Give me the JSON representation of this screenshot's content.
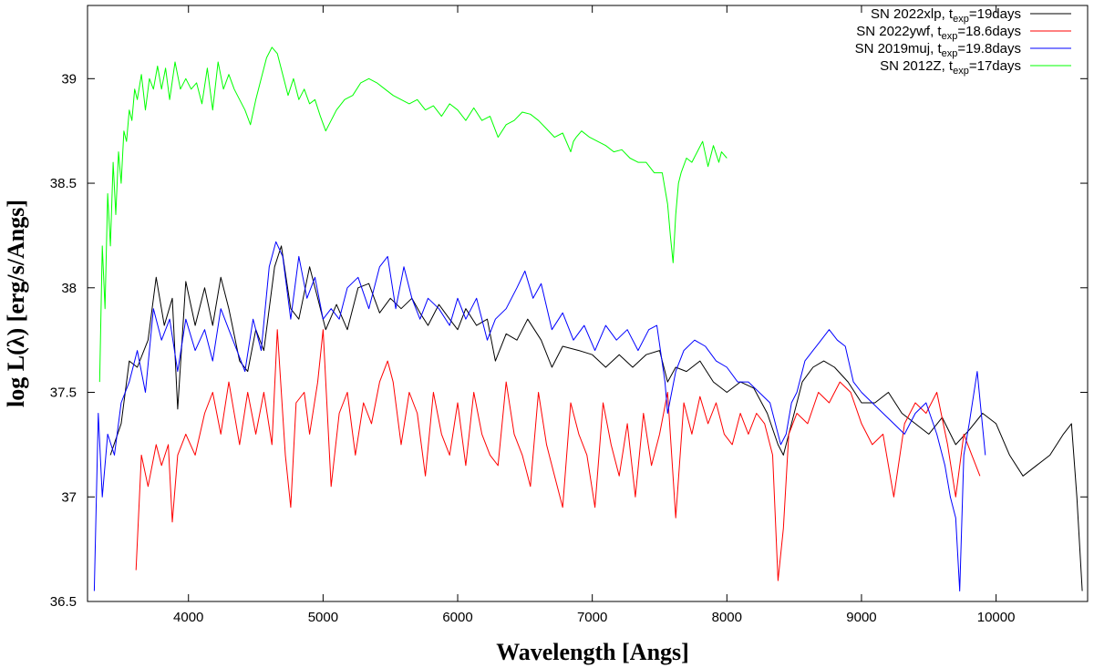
{
  "chart_data": {
    "type": "line",
    "xlabel": "Wavelength [Angs]",
    "ylabel": "log L(λ) [erg/s/Angs]",
    "xlim": [
      3250,
      10680
    ],
    "ylim": [
      36.5,
      39.35
    ],
    "x_ticks": [
      4000,
      5000,
      6000,
      7000,
      8000,
      9000,
      10000
    ],
    "x_tick_labels": [
      "4000",
      "5000",
      "6000",
      "7000",
      "8000",
      "9000",
      "10000"
    ],
    "y_ticks": [
      36.5,
      37,
      37.5,
      38,
      38.5,
      39
    ],
    "y_tick_labels": [
      "36.5",
      "37",
      "37.5",
      "38",
      "38.5",
      "39"
    ],
    "grid": false,
    "legend_position": "top-right",
    "series": [
      {
        "name": "SN 2022xlp, t_exp=19days",
        "legend_main": "SN 2022xlp, t",
        "legend_sub": "exp",
        "legend_tail": "=19days",
        "color": "#000000",
        "x": [
          3420,
          3500,
          3560,
          3620,
          3700,
          3760,
          3820,
          3880,
          3920,
          3980,
          4050,
          4120,
          4180,
          4240,
          4300,
          4380,
          4440,
          4500,
          4560,
          4640,
          4690,
          4760,
          4820,
          4900,
          4960,
          5020,
          5100,
          5180,
          5260,
          5340,
          5420,
          5500,
          5580,
          5660,
          5720,
          5780,
          5860,
          5940,
          6000,
          6060,
          6140,
          6220,
          6280,
          6360,
          6440,
          6520,
          6620,
          6700,
          6780,
          6900,
          7000,
          7100,
          7200,
          7300,
          7400,
          7500,
          7560,
          7620,
          7700,
          7800,
          7900,
          8000,
          8100,
          8200,
          8300,
          8380,
          8420,
          8480,
          8560,
          8640,
          8720,
          8800,
          8900,
          9000,
          9100,
          9200,
          9300,
          9400,
          9500,
          9600,
          9700,
          9800,
          9900,
          10000,
          10100,
          10200,
          10300,
          10400,
          10500,
          10560,
          10600,
          10640
        ],
        "y": [
          37.2,
          37.35,
          37.65,
          37.62,
          37.75,
          38.05,
          37.82,
          37.95,
          37.42,
          38.03,
          37.82,
          38.0,
          37.82,
          38.05,
          37.9,
          37.65,
          37.6,
          37.8,
          37.7,
          38.1,
          38.2,
          37.9,
          37.85,
          38.1,
          37.95,
          37.8,
          37.92,
          37.8,
          38.0,
          38.02,
          37.88,
          37.95,
          37.9,
          37.95,
          37.88,
          37.82,
          37.92,
          37.85,
          37.8,
          37.9,
          37.82,
          37.85,
          37.65,
          37.78,
          37.75,
          37.85,
          37.75,
          37.62,
          37.72,
          37.7,
          37.68,
          37.62,
          37.68,
          37.62,
          37.68,
          37.7,
          37.55,
          37.62,
          37.6,
          37.65,
          37.55,
          37.5,
          37.55,
          37.52,
          37.4,
          37.25,
          37.2,
          37.35,
          37.55,
          37.62,
          37.65,
          37.62,
          37.55,
          37.45,
          37.45,
          37.5,
          37.4,
          37.35,
          37.3,
          37.38,
          37.25,
          37.32,
          37.4,
          37.35,
          37.2,
          37.1,
          37.15,
          37.2,
          37.3,
          37.35,
          37.0,
          36.55
        ]
      },
      {
        "name": "SN 2022ywf, t_exp=18.6days",
        "legend_main": "SN 2022ywf, t",
        "legend_sub": "exp",
        "legend_tail": "=18.6days",
        "color": "#ff0000",
        "x": [
          3610,
          3650,
          3700,
          3760,
          3800,
          3850,
          3880,
          3920,
          3980,
          4050,
          4120,
          4180,
          4240,
          4300,
          4380,
          4440,
          4500,
          4560,
          4620,
          4660,
          4720,
          4760,
          4800,
          4860,
          4900,
          4960,
          5000,
          5060,
          5120,
          5180,
          5240,
          5300,
          5360,
          5420,
          5480,
          5520,
          5580,
          5640,
          5700,
          5760,
          5820,
          5880,
          5940,
          6000,
          6060,
          6120,
          6180,
          6240,
          6300,
          6360,
          6420,
          6480,
          6540,
          6600,
          6660,
          6720,
          6780,
          6840,
          6900,
          6960,
          7020,
          7080,
          7140,
          7200,
          7260,
          7320,
          7380,
          7440,
          7500,
          7560,
          7620,
          7680,
          7740,
          7800,
          7860,
          7920,
          7980,
          8040,
          8100,
          8160,
          8220,
          8280,
          8340,
          8380,
          8420,
          8460,
          8520,
          8600,
          8680,
          8760,
          8840,
          8920,
          9000,
          9080,
          9160,
          9240,
          9320,
          9400,
          9480,
          9560,
          9640,
          9700,
          9760,
          9820,
          9880
        ],
        "y": [
          36.65,
          37.2,
          37.05,
          37.25,
          37.15,
          37.25,
          36.88,
          37.2,
          37.3,
          37.2,
          37.4,
          37.5,
          37.3,
          37.55,
          37.25,
          37.5,
          37.3,
          37.5,
          37.25,
          37.8,
          37.2,
          36.95,
          37.45,
          37.5,
          37.3,
          37.55,
          37.8,
          37.05,
          37.4,
          37.5,
          37.2,
          37.45,
          37.35,
          37.55,
          37.65,
          37.55,
          37.25,
          37.5,
          37.4,
          37.1,
          37.5,
          37.3,
          37.2,
          37.45,
          37.15,
          37.5,
          37.3,
          37.2,
          37.15,
          37.55,
          37.3,
          37.2,
          37.05,
          37.5,
          37.25,
          37.1,
          36.95,
          37.45,
          37.3,
          37.2,
          36.95,
          37.45,
          37.25,
          37.1,
          37.35,
          37.0,
          37.4,
          37.15,
          37.3,
          37.5,
          36.9,
          37.45,
          37.3,
          37.48,
          37.35,
          37.45,
          37.3,
          37.25,
          37.4,
          37.3,
          37.4,
          37.35,
          37.2,
          36.6,
          36.85,
          37.3,
          37.4,
          37.35,
          37.5,
          37.45,
          37.55,
          37.5,
          37.35,
          37.25,
          37.3,
          37.0,
          37.35,
          37.45,
          37.4,
          37.5,
          37.25,
          37.0,
          37.3,
          37.2,
          37.1
        ]
      },
      {
        "name": "SN 2019muj, t_exp=19.8days",
        "legend_main": "SN 2019muj, t",
        "legend_sub": "exp",
        "legend_tail": "=19.8days",
        "color": "#0000ff",
        "x": [
          3300,
          3330,
          3360,
          3400,
          3450,
          3500,
          3560,
          3620,
          3680,
          3740,
          3800,
          3860,
          3920,
          3980,
          4050,
          4120,
          4180,
          4240,
          4300,
          4360,
          4420,
          4480,
          4540,
          4600,
          4650,
          4700,
          4760,
          4820,
          4880,
          4940,
          5000,
          5060,
          5120,
          5180,
          5260,
          5340,
          5420,
          5480,
          5540,
          5600,
          5660,
          5720,
          5780,
          5860,
          5940,
          6000,
          6060,
          6140,
          6220,
          6280,
          6360,
          6440,
          6500,
          6560,
          6620,
          6700,
          6780,
          6860,
          6940,
          7020,
          7100,
          7180,
          7260,
          7340,
          7420,
          7480,
          7540,
          7560,
          7620,
          7680,
          7760,
          7840,
          7920,
          8000,
          8080,
          8160,
          8240,
          8320,
          8360,
          8400,
          8440,
          8480,
          8520,
          8580,
          8640,
          8700,
          8760,
          8820,
          8880,
          8940,
          9000,
          9080,
          9160,
          9240,
          9320,
          9400,
          9480,
          9560,
          9620,
          9660,
          9700,
          9730,
          9760,
          9800,
          9860,
          9920
        ],
        "y": [
          36.55,
          37.4,
          37.0,
          37.3,
          37.2,
          37.45,
          37.55,
          37.7,
          37.5,
          37.9,
          37.75,
          37.85,
          37.6,
          37.85,
          37.7,
          37.8,
          37.65,
          37.9,
          37.8,
          37.7,
          37.6,
          37.85,
          37.7,
          38.1,
          38.22,
          38.15,
          37.85,
          38.15,
          37.95,
          38.05,
          37.85,
          37.9,
          37.85,
          38.0,
          38.05,
          37.9,
          38.1,
          38.15,
          37.9,
          38.1,
          37.95,
          37.85,
          37.95,
          37.9,
          37.82,
          37.95,
          37.85,
          37.95,
          37.75,
          37.85,
          37.9,
          38.0,
          38.08,
          37.95,
          38.02,
          37.8,
          37.88,
          37.75,
          37.82,
          37.7,
          37.82,
          37.75,
          37.8,
          37.7,
          37.8,
          37.82,
          37.55,
          37.4,
          37.6,
          37.7,
          37.75,
          37.72,
          37.65,
          37.62,
          37.55,
          37.55,
          37.5,
          37.45,
          37.35,
          37.25,
          37.3,
          37.45,
          37.5,
          37.65,
          37.7,
          37.75,
          37.8,
          37.75,
          37.72,
          37.55,
          37.5,
          37.45,
          37.4,
          37.35,
          37.3,
          37.4,
          37.45,
          37.3,
          37.15,
          37.0,
          36.9,
          36.55,
          37.2,
          37.35,
          37.6,
          37.2
        ]
      },
      {
        "name": "SN 2012Z, t_exp=17days",
        "legend_main": "SN 2012Z, t",
        "legend_sub": "exp",
        "legend_tail": "=17days",
        "color": "#00ff00",
        "x": [
          3340,
          3360,
          3380,
          3400,
          3420,
          3440,
          3460,
          3480,
          3500,
          3520,
          3540,
          3560,
          3580,
          3600,
          3620,
          3650,
          3680,
          3710,
          3740,
          3770,
          3800,
          3830,
          3860,
          3900,
          3940,
          3980,
          4020,
          4060,
          4100,
          4140,
          4180,
          4220,
          4260,
          4300,
          4340,
          4380,
          4420,
          4460,
          4500,
          4540,
          4580,
          4620,
          4660,
          4700,
          4740,
          4780,
          4820,
          4860,
          4900,
          4940,
          4980,
          5020,
          5060,
          5100,
          5160,
          5220,
          5280,
          5340,
          5400,
          5460,
          5520,
          5580,
          5640,
          5700,
          5760,
          5820,
          5880,
          5940,
          6000,
          6060,
          6120,
          6180,
          6240,
          6300,
          6360,
          6420,
          6480,
          6540,
          6600,
          6660,
          6720,
          6780,
          6840,
          6860,
          6880,
          6920,
          6980,
          7040,
          7100,
          7160,
          7220,
          7280,
          7340,
          7400,
          7460,
          7520,
          7560,
          7580,
          7600,
          7620,
          7640,
          7660,
          7700,
          7740,
          7780,
          7820,
          7860,
          7900,
          7940,
          7960,
          8000
        ],
        "y": [
          37.55,
          38.2,
          37.9,
          38.45,
          38.2,
          38.6,
          38.35,
          38.65,
          38.5,
          38.75,
          38.7,
          38.85,
          38.8,
          38.95,
          38.9,
          39.02,
          38.85,
          39.0,
          38.95,
          39.06,
          38.95,
          39.05,
          38.9,
          39.08,
          38.95,
          39.0,
          38.95,
          38.98,
          38.88,
          39.05,
          38.85,
          39.08,
          38.95,
          39.02,
          38.95,
          38.9,
          38.85,
          38.78,
          38.9,
          39.0,
          39.1,
          39.15,
          39.12,
          39.02,
          38.92,
          39.0,
          38.9,
          38.95,
          38.88,
          38.9,
          38.82,
          38.75,
          38.8,
          38.85,
          38.9,
          38.92,
          38.98,
          39.0,
          38.98,
          38.95,
          38.92,
          38.9,
          38.88,
          38.9,
          38.85,
          38.87,
          38.82,
          38.88,
          38.85,
          38.8,
          38.86,
          38.8,
          38.82,
          38.72,
          38.78,
          38.8,
          38.84,
          38.83,
          38.8,
          38.76,
          38.72,
          38.74,
          38.65,
          38.7,
          38.72,
          38.75,
          38.72,
          38.7,
          38.68,
          38.65,
          38.66,
          38.62,
          38.6,
          38.6,
          38.55,
          38.55,
          38.4,
          38.25,
          38.12,
          38.35,
          38.5,
          38.55,
          38.62,
          38.6,
          38.65,
          38.7,
          38.58,
          38.68,
          38.6,
          38.65,
          38.62
        ]
      }
    ]
  }
}
